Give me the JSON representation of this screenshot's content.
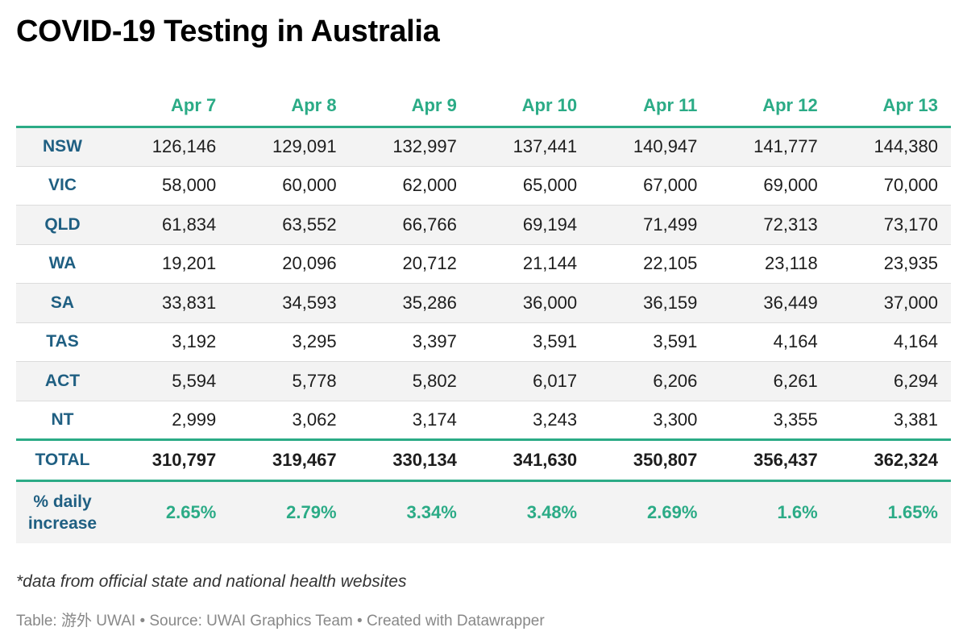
{
  "title": "COVID-19 Testing in Australia",
  "columns": [
    "Apr 7",
    "Apr 8",
    "Apr 9",
    "Apr 10",
    "Apr 11",
    "Apr 12",
    "Apr 13"
  ],
  "rows": [
    {
      "region": "NSW",
      "values": [
        "126,146",
        "129,091",
        "132,997",
        "137,441",
        "140,947",
        "141,777",
        "144,380"
      ]
    },
    {
      "region": "VIC",
      "values": [
        "58,000",
        "60,000",
        "62,000",
        "65,000",
        "67,000",
        "69,000",
        "70,000"
      ]
    },
    {
      "region": "QLD",
      "values": [
        "61,834",
        "63,552",
        "66,766",
        "69,194",
        "71,499",
        "72,313",
        "73,170"
      ]
    },
    {
      "region": "WA",
      "values": [
        "19,201",
        "20,096",
        "20,712",
        "21,144",
        "22,105",
        "23,118",
        "23,935"
      ]
    },
    {
      "region": "SA",
      "values": [
        "33,831",
        "34,593",
        "35,286",
        "36,000",
        "36,159",
        "36,449",
        "37,000"
      ]
    },
    {
      "region": "TAS",
      "values": [
        "3,192",
        "3,295",
        "3,397",
        "3,591",
        "3,591",
        "4,164",
        "4,164"
      ]
    },
    {
      "region": "ACT",
      "values": [
        "5,594",
        "5,778",
        "5,802",
        "6,017",
        "6,206",
        "6,261",
        "6,294"
      ]
    },
    {
      "region": "NT",
      "values": [
        "2,999",
        "3,062",
        "3,174",
        "3,243",
        "3,300",
        "3,355",
        "3,381"
      ]
    }
  ],
  "total": {
    "label": "TOTAL",
    "values": [
      "310,797",
      "319,467",
      "330,134",
      "341,630",
      "350,807",
      "356,437",
      "362,324"
    ]
  },
  "daily_increase": {
    "label_line1": "% daily",
    "label_line2": "increase",
    "values": [
      "2.65%",
      "2.79%",
      "3.34%",
      "3.48%",
      "2.69%",
      "1.6%",
      "1.65%"
    ]
  },
  "note": "*data from official state and national health websites",
  "footer": "Table: 游外 UWAI • Source: UWAI Graphics Team • Created with Datawrapper",
  "colors": {
    "accent": "#2bab86",
    "region_text": "#1f5f82",
    "stripe": "#f3f3f3"
  },
  "chart_data": {
    "type": "table",
    "title": "COVID-19 Testing in Australia",
    "categories": [
      "Apr 7",
      "Apr 8",
      "Apr 9",
      "Apr 10",
      "Apr 11",
      "Apr 12",
      "Apr 13"
    ],
    "series": [
      {
        "name": "NSW",
        "values": [
          126146,
          129091,
          132997,
          137441,
          140947,
          141777,
          144380
        ]
      },
      {
        "name": "VIC",
        "values": [
          58000,
          60000,
          62000,
          65000,
          67000,
          69000,
          70000
        ]
      },
      {
        "name": "QLD",
        "values": [
          61834,
          63552,
          66766,
          69194,
          71499,
          72313,
          73170
        ]
      },
      {
        "name": "WA",
        "values": [
          19201,
          20096,
          20712,
          21144,
          22105,
          23118,
          23935
        ]
      },
      {
        "name": "SA",
        "values": [
          33831,
          34593,
          35286,
          36000,
          36159,
          36449,
          37000
        ]
      },
      {
        "name": "TAS",
        "values": [
          3192,
          3295,
          3397,
          3591,
          3591,
          4164,
          4164
        ]
      },
      {
        "name": "ACT",
        "values": [
          5594,
          5778,
          5802,
          6017,
          6206,
          6261,
          6294
        ]
      },
      {
        "name": "NT",
        "values": [
          2999,
          3062,
          3174,
          3243,
          3300,
          3355,
          3381
        ]
      },
      {
        "name": "TOTAL",
        "values": [
          310797,
          319467,
          330134,
          341630,
          350807,
          356437,
          362324
        ]
      },
      {
        "name": "% daily increase",
        "values": [
          2.65,
          2.79,
          3.34,
          3.48,
          2.69,
          1.6,
          1.65
        ]
      }
    ]
  }
}
